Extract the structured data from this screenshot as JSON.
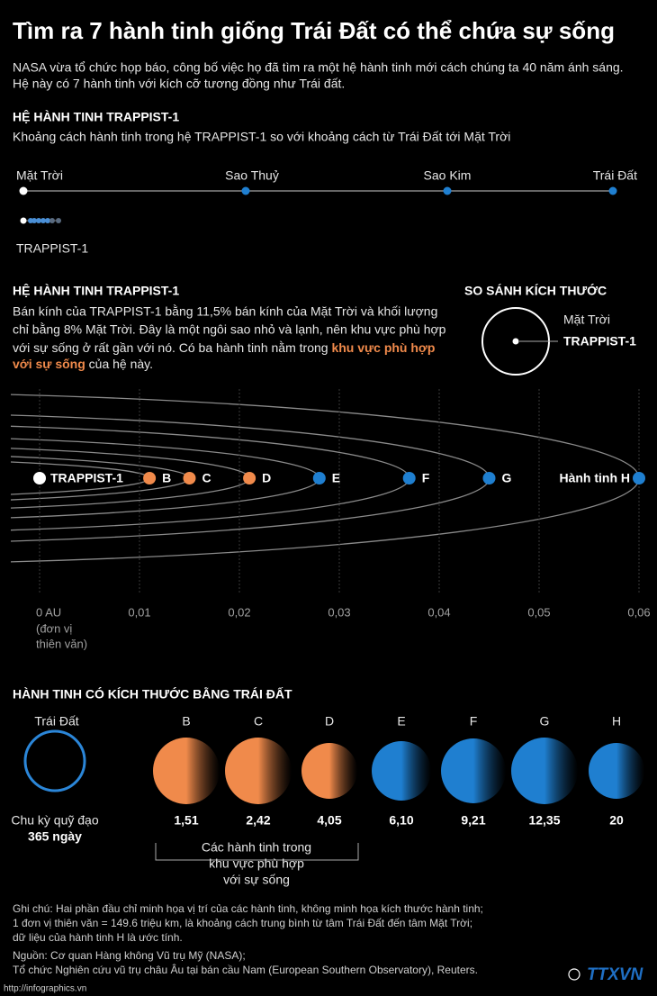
{
  "title": "Tìm ra 7 hành tinh giống Trái Đất có thể chứa sự sống",
  "intro": [
    "NASA vừa tổ chức họp báo, công bố việc họ đã tìm ra một hệ hành tinh mới cách chúng ta 40 năm ánh sáng.",
    "Hệ này có 7 hành tinh với kích cỡ tương đồng như Trái đất."
  ],
  "section1": {
    "heading": "HỆ HÀNH TINH TRAPPIST-1",
    "subtitle": "Khoảng cách hành tinh trong hệ TRAPPIST-1 so với khoảng cách từ Trái Đất tới Mặt Trời",
    "solar_labels": [
      "Mặt Trời",
      "Sao Thuỷ",
      "Sao Kim",
      "Trái Đất"
    ],
    "trappist_label": "TRAPPIST-1"
  },
  "section2": {
    "heading": "HỆ HÀNH TINH TRAPPIST-1",
    "description": [
      "Bán kính của TRAPPIST-1 bằng 11,5% bán kính của Mặt Trời và khối lượng",
      "chỉ bằng 8% Mặt Trời. Đây là một ngôi sao nhỏ và lạnh, nên khu vực phù hợp",
      "với sự sống ở rất gần với nó. Có ba hành tinh nằm trong"
    ],
    "highlight": [
      "khu vực phù hợp",
      "với sự sống"
    ],
    "description_end": "của hệ này.",
    "size_compare": {
      "heading": "SO SÁNH KÍCH THƯỚC",
      "labels": [
        "Mặt Trời",
        "TRAPPIST-1"
      ]
    }
  },
  "orbit": {
    "star": "TRAPPIST-1",
    "planets": [
      {
        "name": "B",
        "distance_au": 0.011,
        "color": "#f08a4b"
      },
      {
        "name": "C",
        "distance_au": 0.015,
        "color": "#f08a4b"
      },
      {
        "name": "D",
        "distance_au": 0.021,
        "color": "#f08a4b"
      },
      {
        "name": "E",
        "distance_au": 0.028,
        "color": "#1f7fd0"
      },
      {
        "name": "F",
        "distance_au": 0.037,
        "color": "#1f7fd0"
      },
      {
        "name": "G",
        "distance_au": 0.045,
        "color": "#1f7fd0"
      },
      {
        "name": "Hành tinh H",
        "distance_au": 0.06,
        "color": "#1f7fd0"
      }
    ],
    "xlim": [
      0,
      0.06
    ],
    "xticks": [
      {
        "value": 0,
        "label": "0 AU"
      },
      {
        "value": 0.01,
        "label": "0,01"
      },
      {
        "value": 0.02,
        "label": "0,02"
      },
      {
        "value": 0.03,
        "label": "0,03"
      },
      {
        "value": 0.04,
        "label": "0,04"
      },
      {
        "value": 0.05,
        "label": "0,05"
      },
      {
        "value": 0.06,
        "label": "0,06"
      }
    ],
    "unit_note": [
      "(đơn vị",
      "thiên văn)"
    ]
  },
  "earth_size": {
    "heading": "HÀNH TINH CÓ KÍCH THƯỚC BẰNG TRÁI ĐẤT",
    "earth": {
      "name": "Trái Đất",
      "period_label": "Chu kỳ quỹ đạo",
      "period": "365 ngày"
    },
    "planets": [
      {
        "name": "B",
        "period": "1,51",
        "color": "#f08a4b"
      },
      {
        "name": "C",
        "period": "2,42",
        "color": "#f08a4b"
      },
      {
        "name": "D",
        "period": "4,05",
        "color": "#f08a4b"
      },
      {
        "name": "E",
        "period": "6,10",
        "color": "#1f7fd0"
      },
      {
        "name": "F",
        "period": "9,21",
        "color": "#1f7fd0"
      },
      {
        "name": "G",
        "period": "12,35",
        "color": "#1f7fd0"
      },
      {
        "name": "H",
        "period": "20",
        "color": "#1f7fd0"
      }
    ],
    "bracket_note": [
      "Các hành tinh trong",
      "khu vực phù hợp",
      "với sự sống"
    ]
  },
  "notes": [
    "Ghi chú: Hai phần đầu chỉ minh họa vị trí của các hành tinh, không minh họa kích thước hành tinh;",
    "1 đơn vị thiên văn = 149.6 triệu km, là khoảng cách trung bình từ tâm Trái Đất đến tâm Mặt Trời;",
    "dữ liệu của hành tinh H là ước tính."
  ],
  "source": [
    "Nguồn: Cơ quan Hàng không Vũ trụ Mỹ (NASA);",
    "Tổ chức Nghiên cứu vũ trụ châu Âu tại bán cầu Nam (European Southern Observatory), Reuters."
  ],
  "footer": "http://infographics.vn",
  "logo": "TTXVN"
}
